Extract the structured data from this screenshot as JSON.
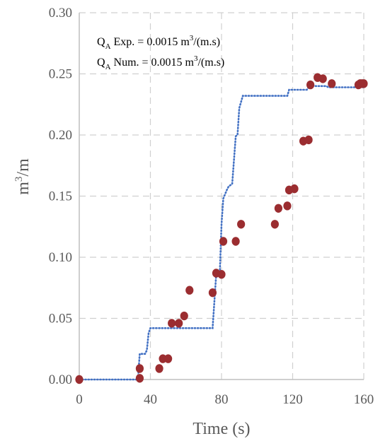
{
  "chart_data": {
    "type": "scatter",
    "xlabel": "Time (s)",
    "ylabel_base": "m",
    "ylabel_sup": "3",
    "ylabel_tail": "/m",
    "xlim": [
      0,
      160
    ],
    "ylim": [
      0,
      0.3
    ],
    "x_ticks": [
      0,
      40,
      80,
      120,
      160
    ],
    "x_tick_labels": [
      "0",
      "40",
      "80",
      "120",
      "160"
    ],
    "y_ticks": [
      0,
      0.05,
      0.1,
      0.15,
      0.2,
      0.25,
      0.3
    ],
    "y_tick_labels": [
      "0.00",
      "0.05",
      "0.10",
      "0.15",
      "0.20",
      "0.25",
      "0.30"
    ],
    "grid": true,
    "legend_placement": "top-left",
    "annotations": [
      {
        "sym": "Q",
        "sub": "A",
        "label": " Exp. = 0.0015 m",
        "sup": "3",
        "unit": "/(m.s)"
      },
      {
        "sym": "Q",
        "sub": "A",
        "label": " Num. = 0.0015  m",
        "sup": "3",
        "unit": "/(m.s)"
      }
    ],
    "colors": {
      "experimental": "#9b2d30",
      "numerical": "#4472c4",
      "grid": "#d0d0d0",
      "text": "#595959"
    },
    "series": [
      {
        "style": "points",
        "x": [
          0,
          34,
          34,
          45,
          47,
          50,
          52,
          56,
          59,
          62,
          75,
          77,
          80,
          81,
          88,
          91,
          110,
          112,
          117,
          118,
          121,
          126,
          129,
          130,
          134,
          137,
          142,
          157,
          158,
          159,
          160
        ],
        "y": [
          0.0,
          0.001,
          0.009,
          0.009,
          0.017,
          0.017,
          0.046,
          0.046,
          0.052,
          0.073,
          0.071,
          0.087,
          0.086,
          0.113,
          0.113,
          0.127,
          0.127,
          0.14,
          0.142,
          0.155,
          0.156,
          0.195,
          0.196,
          0.241,
          0.247,
          0.246,
          0.242,
          0.241,
          0.242,
          0.242,
          0.242
        ]
      },
      {
        "style": "dotted-line",
        "x": [
          0,
          33,
          34,
          37,
          38,
          39,
          40,
          75,
          77,
          79,
          80,
          81,
          83,
          84,
          86,
          88,
          89,
          90,
          92,
          117,
          118,
          128,
          130,
          133,
          139,
          140,
          160
        ],
        "y": [
          0,
          0,
          0.021,
          0.021,
          0.024,
          0.038,
          0.042,
          0.042,
          0.086,
          0.086,
          0.127,
          0.148,
          0.155,
          0.158,
          0.16,
          0.199,
          0.2,
          0.222,
          0.232,
          0.232,
          0.237,
          0.237,
          0.241,
          0.24,
          0.24,
          0.239,
          0.239
        ]
      }
    ]
  }
}
